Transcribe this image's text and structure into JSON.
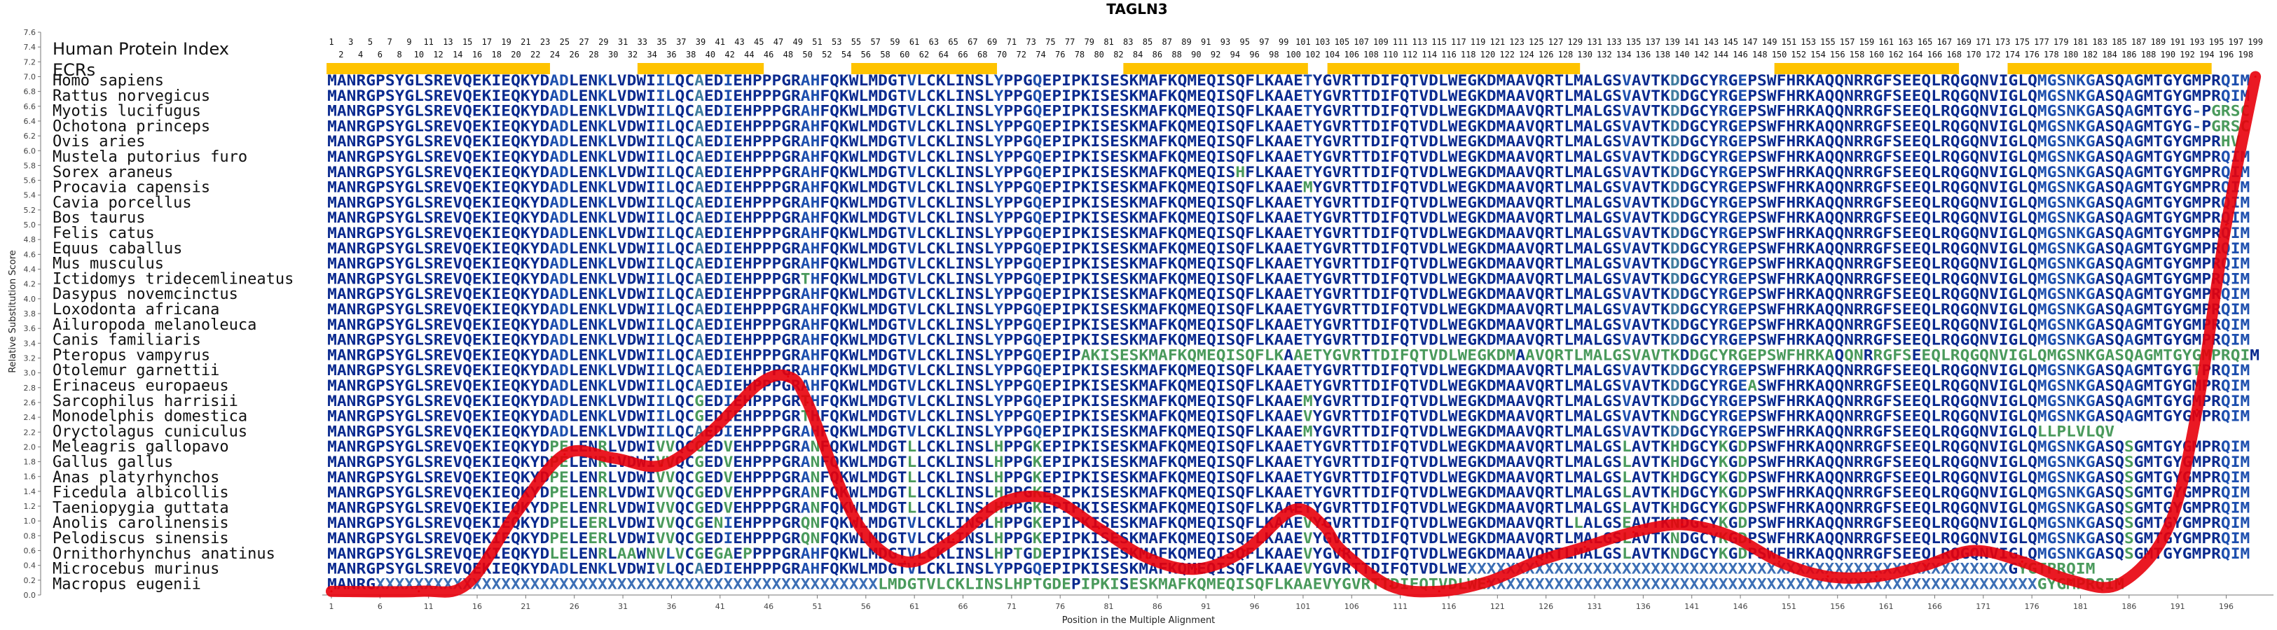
{
  "chart_data": {
    "type": "line",
    "title": "TAGLN3",
    "xlabel": "Position in the Multiple Alignment",
    "ylabel": "Relative Substitution Score",
    "xlim": [
      1,
      200
    ],
    "ylim": [
      0,
      7.6
    ],
    "yticks": [
      "0.0",
      "0.2",
      "0.4",
      "0.6",
      "0.8",
      "1.0",
      "1.2",
      "1.4",
      "1.6",
      "1.8",
      "2.0",
      "2.2",
      "2.4",
      "2.6",
      "2.8",
      "3.0",
      "3.2",
      "3.4",
      "3.6",
      "3.8",
      "4.0",
      "4.2",
      "4.4",
      "4.6",
      "4.8",
      "5.0",
      "5.2",
      "5.4",
      "5.6",
      "5.8",
      "6.0",
      "6.2",
      "6.4",
      "6.6",
      "6.8",
      "7.0",
      "7.2",
      "7.4",
      "7.6"
    ],
    "xticks": [
      "1",
      "6",
      "11",
      "16",
      "21",
      "26",
      "31",
      "36",
      "41",
      "46",
      "51",
      "56",
      "61",
      "66",
      "71",
      "76",
      "81",
      "86",
      "91",
      "96",
      "101",
      "106",
      "111",
      "116",
      "121",
      "126",
      "131",
      "136",
      "141",
      "146",
      "151",
      "156",
      "161",
      "166",
      "171",
      "176",
      "181",
      "186",
      "191",
      "196"
    ],
    "header_label": "Human Protein Index",
    "ecr_label": "ECRs",
    "human_index_odd": [
      "1",
      "3",
      "5",
      "7",
      "9",
      "11",
      "13",
      "15",
      "17",
      "19",
      "21",
      "23",
      "25",
      "27",
      "29",
      "31",
      "33",
      "35",
      "37",
      "39",
      "41",
      "43",
      "45",
      "47",
      "49",
      "51",
      "53",
      "55",
      "57",
      "59",
      "61",
      "63",
      "65",
      "67",
      "69",
      "71",
      "73",
      "75",
      "77",
      "79",
      "81",
      "83",
      "85",
      "87",
      "89",
      "91",
      "93",
      "95",
      "97",
      "99",
      "101",
      "103",
      "105",
      "107",
      "109",
      "111",
      "113",
      "115",
      "117",
      "119",
      "121",
      "123",
      "125",
      "127",
      "129",
      "131",
      "133",
      "135",
      "137",
      "139",
      "141",
      "143",
      "145",
      "147",
      "149",
      "151",
      "153",
      "155",
      "157",
      "159",
      "161",
      "163",
      "165",
      "167",
      "169",
      "171",
      "173",
      "175",
      "177",
      "179",
      "181",
      "183",
      "185",
      "187",
      "189",
      "191",
      "193",
      "195",
      "197",
      "199"
    ],
    "human_index_even": [
      "2",
      "4",
      "6",
      "8",
      "10",
      "12",
      "14",
      "16",
      "18",
      "20",
      "22",
      "24",
      "26",
      "28",
      "30",
      "32",
      "34",
      "36",
      "38",
      "40",
      "42",
      "44",
      "46",
      "48",
      "50",
      "52",
      "54",
      "56",
      "58",
      "60",
      "62",
      "64",
      "66",
      "68",
      "70",
      "72",
      "74",
      "76",
      "78",
      "80",
      "82",
      "84",
      "86",
      "88",
      "90",
      "92",
      "94",
      "96",
      "98",
      "100",
      "102",
      "104",
      "106",
      "108",
      "110",
      "112",
      "114",
      "116",
      "118",
      "120",
      "122",
      "124",
      "126",
      "128",
      "130",
      "132",
      "134",
      "136",
      "138",
      "140",
      "142",
      "144",
      "146",
      "148",
      "150",
      "152",
      "154",
      "156",
      "158",
      "160",
      "162",
      "164",
      "166",
      "168",
      "170",
      "172",
      "174",
      "176",
      "178",
      "180",
      "182",
      "184",
      "186",
      "188",
      "190",
      "192",
      "194",
      "196",
      "198"
    ],
    "ecrs": [
      [
        1,
        23
      ],
      [
        33,
        45
      ],
      [
        55,
        69
      ],
      [
        83,
        101
      ],
      [
        104,
        129
      ],
      [
        150,
        168
      ],
      [
        174,
        194
      ]
    ],
    "series": [
      {
        "color": "#e8000b",
        "x": [
          1,
          10,
          15,
          20,
          25,
          30,
          35,
          40,
          45,
          48,
          50,
          55,
          60,
          65,
          70,
          75,
          80,
          85,
          90,
          95,
          100,
          103,
          105,
          110,
          115,
          120,
          125,
          130,
          135,
          140,
          145,
          150,
          155,
          160,
          165,
          170,
          175,
          180,
          185,
          190,
          193,
          196,
          199
        ],
        "y": [
          0.05,
          0.05,
          0.15,
          1.1,
          1.9,
          1.85,
          1.75,
          2.2,
          2.85,
          2.95,
          2.6,
          1.0,
          0.45,
          0.75,
          1.25,
          1.3,
          0.9,
          0.5,
          0.35,
          0.6,
          1.15,
          0.95,
          0.6,
          0.12,
          0.05,
          0.18,
          0.45,
          0.65,
          0.85,
          0.95,
          0.8,
          0.45,
          0.25,
          0.25,
          0.4,
          0.6,
          0.45,
          0.2,
          0.15,
          0.9,
          2.5,
          5.0,
          7.0
        ]
      }
    ],
    "species": [
      "Homo sapiens",
      "Rattus norvegicus",
      "Myotis lucifugus",
      "Ochotona princeps",
      "Ovis aries",
      "Mustela putorius furo",
      "Sorex araneus",
      "Procavia capensis",
      "Cavia porcellus",
      "Bos taurus",
      "Felis catus",
      "Equus caballus",
      "Mus musculus",
      "Ictidomys tridecemlineatus",
      "Dasypus novemcinctus",
      "Loxodonta africana",
      "Ailuropoda melanoleuca",
      "Canis familiaris",
      "Pteropus vampyrus",
      "Otolemur garnettii",
      "Erinaceus europaeus",
      "Sarcophilus harrisii",
      "Monodelphis domestica",
      "Oryctolagus cuniculus",
      "Meleagris gallopavo",
      "Gallus gallus",
      "Anas platyrhynchos",
      "Ficedula albicollis",
      "Taeniopygia guttata",
      "Anolis carolinensis",
      "Pelodiscus sinensis",
      "Ornithorhynchus anatinus",
      "Microcebus murinus",
      "Macropus eugenii"
    ],
    "sequences": [
      "MANRGPSYGLSREVQEKIEQKYDADLENKLVDWIILQCAEDIEHPPPGRAHFQKWLMDGTVLCKLINSLYPPGQEPIPKISESKMAFKQMEQISQFLKAAETYGVRTTDIFQTVDLWEGKDMAAVQRTLMALGSVAVTKDDGCYRGEPSWFHRKAQQNRRGFSEEQLRQGQNVIGLQMGSNKGASQAGMTGYGMPRQIM",
      "MANRGPSYGLSREVQEKIEQKYDADLENKLVDWIILQCAEDIEHPPPGRAHFQKWLMDGTVLCKLINSLYPPGQEPIPKISESKMAFKQMEQISQFLKAAETYGVRTTDIFQTVDLWEGKDMAAVQRTLMALGSVAVTKDDGCYRGEPSWFHRKAQQNRRGFSEEQLRQGQNVIGLQMGSNKGASQAGMTGYGMPRQIM",
      "MANRGPSYGLSREVQEKIEQKYDADLENKLVDWIILQCAEDIEHPPPGRAHFQKWLMDGTVLCKLINSLYPPGQEPIPKISESKMAFKQMEQISQFLKAAETYGVRTTDIFQTVDLWEGKDMAAVQRTLMALGSVAVTKDDGCYRGEPSWFHRKAQQNRRGFSEEQLRQGQNVIGLQMGSNKGASQAGMTGYG-PGRSC",
      "MANRGPSYGLSREVQEKIEQKYDADLENKLVDWIILQCAEDIEHPPPGRAHFQKWLMDGTVLCKLINSLYPPGQEPIPKISESKMAFKQMEQISQFLKAAETYGVRTTDIFQTVDLWEGKDMAAVQRTLMALGSVAVTKDDGCYRGEPSWFHRKAQQNRRGFSEEQLRQGQNVIGLQMGSNKGASQAGMTGYG-PGRSC",
      "MANRGPSYGLSREVQEKIEQKYDADLENKLVDWIILQCAEDIEHPPPGRAHFQKWLMDGTVLCKLINSLYPPGQEPIPKISESKMAFKQMEQISQFLKAAETYGVRTTDIFQTVDLWEGKDMAAVQRTLMALGSVAVTKDDGCYRGEPSWFHRKAQQNRRGFSEEQLRQGQNVIGLQMGSNKGASQAGMTGYGMPRHV",
      "MANRGPSYGLSREVQEKIEQKYDADLENKLVDWIILQCAEDIEHPPPGRAHFQKWLMDGTVLCKLINSLYPPGQEPIPKISESKMAFKQMEQISQFLKAAETYGVRTTDIFQTVDLWEGKDMAAVQRTLMALGSVAVTKDDGCYRGEPSWFHRKAQQNRRGFSEEQLRQGQNVIGLQMGSNKGASQAGMTGYGMPRQIM",
      "MANRGPSYGLSREVQEKIEQKYDADLENKLVDWIILQCAEDIEHPPPGRAHFQKWLMDGTVLCKLINSLYPPGQEPIPKISESKMAFKQMEQISHFLKAAETYGVRTTDIFQTVDLWEGKDMAAVQRTLMALGSVAVTKDDGCYRGEPSWFHRKAQQNRRGFSEEQLRQGQNVIGLQMGSNKGASQAGMTGYGMPRQIM",
      "MANRGPSYGLSREVQEKIEQKYDADLENKLVDWIILQCAEDIEHPPPGRAHFQKWLMDGTVLCKLINSLYPPGQEPIPKISESKMAFKQMEQISQFLKAAEMYGVRTTDIFQTVDLWEGKDMAAVQRTLMALGSVAVTKDDGCYRGEPSWFHRKAQQNRRGFSEEQLRQGQNVIGLQMGSNKGASQAGMTGYGMPRQIM",
      "MANRGPSYGLSREVQEKIEQKYDADLENKLVDWIILQCAEDIEHPPPGRAHFQKWLMDGTVLCKLINSLYPPGQEPIPKISESKMAFKQMEQISQFLKAAETYGVRTTDIFQTVDLWEGKDMAAVQRTLMALGSVAVTKDDGCYRGEPSWFHRKAQQNRRGFSEEQLRQGQNVIGLQMGSNKGASQAGMTGYGMPRQIM",
      "MANRGPSYGLSREVQEKIEQKYDADLENKLVDWIILQCAEDIEHPPPGRAHFQKWLMDGTVLCKLINSLYPPGQEPIPKISESKMAFKQMEQISQFLKAAETYGVRTTDIFQTVDLWEGKDMAAVQRTLMALGSVAVTKDDGCYRGEPSWFHRKAQQNRRGFSEEQLRQGQNVIGLQMGSNKGASQAGMTGYGMPRQIM",
      "MANRGPSYGLSREVQEKIEQKYDADLENKLVDWIILQCAEDIEHPPPGRAHFQKWLMDGTVLCKLINSLYPPGQEPIPKISESKMAFKQMEQISQFLKAAETYGVRTTDIFQTVDLWEGKDMAAVQRTLMALGSVAVTKDDGCYRGEPSWFHRKAQQNRRGFSEEQLRQGQNVIGLQMGSNKGASQAGMTGYGMPRQIM",
      "MANRGPSYGLSREVQEKIEQKYDADLENKLVDWIILQCAEDIEHPPPGRAHFQKWLMDGTVLCKLINSLYPPGQEPIPKISESKMAFKQMEQISQFLKAAETYGVRTTDIFQTVDLWEGKDMAAVQRTLMALGSVAVTKDDGCYRGEPSWFHRKAQQNRRGFSEEQLRQGQNVIGLQMGSNKGASQAGMTGYGMPRQIM",
      "MANRGPSYGLSREVQEKIEQKYDADLENKLVDWIILQCAEDIEHPPPGRAHFQKWLMDGTVLCKLINSLYPPGQEPIPKISESKMAFKQMEQISQFLKAAETYGVRTTDIFQTVDLWEGKDMAAVQRTLMALGSVAVTKDDGCYRGEPSWFHRKAQQNRRGFSEEQLRQGQNVIGLQMGSNKGASQAGMTGYGMPRQIM",
      "MANRGPSYGLSREVQEKIEQKYDADLENKLVDWIILQCAEDIEHPPPGRTHFQKWLMDGTVLCKLINSLYPPGQEPIPKISESKMAFKQMEQISQFLKAAETYGVRTTDIFQTVDLWEGKDMAAVQRTLMALGSVAVTKDDGCYRGEPSWFHRKAQQNRRGFSEEQLRQGQNVIGLQMGSNKGASQAGMTGYGMPRQIM",
      "MANRGPSYGLSREVQEKIEQKYDADLENKLVDWIILQCAEDIEHPPPGRAHFQKWLMDGTVLCKLINSLYPPGQEPIPKISESKMAFKQMEQISQFLKAAETYGVRTTDIFQTVDLWEGKDMAAVQRTLMALGSVAVTKDDGCYRGEPSWFHRKAQQNRRGFSEEQLRQGQNVIGLQMGSNKGASQAGMTGYGMPRQIM",
      "MANRGPSYGLSREVQEKIEQKYDADLENKLVDWIILQCAEDIEHPPPGRAHFQKWLMDGTVLCKLINSLYPPGQEPIPKISESKMAFKQMEQISQFLKAAETYGVRTTDIFQTVDLWEGKDMAAVQRTLMALGSVAVTKDDGCYRGEPSWFHRKAQQNRRGFSEEQLRQGQNVIGLQMGSNKGASQAGMTGYGMPRQIM",
      "MANRGPSYGLSREVQEKIEQKYDADLENKLVDWIILQCAEDIEHPPPGRAHFQKWLMDGTVLCKLINSLYPPGQEPIPKISESKMAFKQMEQISQFLKAAETYGVRTTDIFQTVDLWEGKDMAAVQRTLMALGSVAVTKDDGCYRGEPSWFHRKAQQNRRGFSEEQLRQGQNVIGLQMGSNKGASQAGMTGYGMPRQIM",
      "MANRGPSYGLSREVQEKIEQKYDADLENKLVDWIILQCAEDIEHPPPGRAHFQKWLMDGTVLCKLINSLYPPGQEPIPKISESKMAFKQMEQISQFLKAAETYGVRTTDIFQTVDLWEGKDMAAVQRTLMALGSVAVTKDDGCYRGEPSWFHRKAQQNRRGFSEEQLRQGQNVIGLQMGSNKGASQAGMTGYGMPRQIM",
      "MANRGPSYGLSREVQEKIEQKYDADLENKLVDWIILQCAEDIEHPPPGRAHFQKWLMDGTVLCKLINSLYPPGQEPIPAKISESKMAFKQMEQISQFLKAAETYGVRTTDIFQTVDLWEGKDMAAVQRTLMALGSVAVTKDDGCYRGEPSWFHRKAQQNRRGFSEEQLRQGQNVIGLQMGSNKGASQAGMTGYGMPRQIM",
      "MANRGPSYGLSREVQEKIEQKYDADLENKLVDWIILQCAEDIEHPPPGRAHFQKWLMDGTVLCKLINSLYPPGQEPIPKISESKMAFKQMEQISQFLKAAETYGVRTTDIFQTVDLWEGKDMAAVQRTLMALGSVAVTKDDGCYRGEPSWFHRKAQQNRRGFSEEQLRQGQNVIGLQMGSNKGASQAGMTGYGTPRQIM",
      "MANRGPSYGLSREVQEKIEQKYDADLENKLVDWIILQCAEDIEHPPPGRAHFQKWLMDGTVLCKLINSLYPPGQEPIPKISESKMAFKQMEQISQFLKAAETYGVRTTDIFQTVDLWEGKDMAAVQRTLMALGSVAVTKDDGCYRGEASWFHRKAQQNRRGFSEEQLRQGQNVIGLQMGSNKGASQAGMTGYGMPRQIM",
      "MANRGPSYGLSREVQEKIEQKYDADLENKLVDWIILQCGEDIEHPPPGRTHFQKWLMDGTVLCKLINSLYPPGQEPIPKISESKMAFKQMEQISQFLKAAEMYGVRTTDIFQTVDLWEGKDMAAVQRTLMALGSVAVTKDDGCYRGEPSWFHRKAQQNRRGFSEEQLRQGQNVIGLQMGSNKGASQAGMTGYGMPRQIM",
      "MANRGPSYGLSREVQEKIEQKYDADLENKLVDWIILQCGEDIEHPPPGRTHFQKWLMDGTVLCKLINSLYPPGQEPIPKISESKMAFKQMEQISQFLKAAEVYGVRTTDIFQTVDLWEGKDMAAVQRTLMALGSVAVTKNDGCYRGEPSWFHRKAQQNRRGFSEEQLRQGQNVIGLQMGSNKGASQAGMTGYGMPRQIM",
      "MANRGPSYGLSREVQEKIEQKYDADLENKLVDWIILQCAEDIEHPPPGRAHFQKWLMDGTVLCKLINSLYPPGQEPIPKISESKMAFKQMEQISQFLKAAEMYGVRTTDIFQTVDLWEGKDMAAVQRTLMALGSVAVTKDDGCYRGEPSWFHRKAQQNRRGFSEEQLRQGQNVIGLQLLPLVLQV",
      "MANRGPSYGLSREVQEKIEQKYDPELENRLVDWIVVQCGEDVEHPPPGRANFQKWLMDGTLLCKLINSLHPPGKEPIPKISESKMAFKQMEQISQFLKAAETYGVRTTDIFQTVDLWEGKDMAAVQRTLMALGSLAVTKHDGCYKGDPSWFHRKAQQNRRGFSEEQLRQGQNVIGLQMGSNKGASQSGMTGYGMPRQIM",
      "MANRGPSYGLSREVQEKIEQKYDPELENRLVDWIVVQCGEDVEHPPPGRANFQKWLMDGTLLCKLINSLHPPGKEPIPKISESKMAFKQMEQISQFLKAAETYGVRTTDIFQTVDLWEGKDMAAVQRTLMALGSLAVTKHDGCYKGDPSWFHRKAQQNRRGFSEEQLRQGQNVIGLQMGSNKGASQSGMTGYGMPRQIM",
      "MANRGPSYGLSREVQEKIEQKYDPELENRLVDWIVVQCGEDVEHPPPGRANFQKWLMDGTLLCKLINSLHPPGKEPIPKISESKMAFKQMEQISQFLKAAETYGVRTTDIFQTVDLWEGKDMAAVQRTLMALGSLAVTKHDGCYKGDPSWFHRKAQQNRRGFSEEQLRQGQNVIGLQMGSNKGASQSGMTGYGMPRQIM",
      "MANRGPSYGLSREVQEKIEQKYDPELENRLVDWIVVQCGEDVEHPPPGRANFQKWLMDGTLLCKLINSLHPPGKEPIPKISESKMAFKQMEQISQFLKAAETYGVRTTDIFQTVDLWEGKDMAAVQRTLMALGSLAVTKHDGCYKGDPSWFHRKAQQNRRGFSEEQLRQGQNVIGLQMGSNKGASQSGMTGYGMPRQIM",
      "MANRGPSYGLSREVQEKIEQKYDPELENRLVDWIVVQCGEDVEHPPPGRANFQKWLMDGTLLCKLINSLHPPGKEPIPKISESKMAFKQMEQISQFLKAAETYGVRTTDIFQTVDLWEGKDMAAVQRTLMALGSLAVTKHDGCYKGDPSWFHRKAQQNRRGFSEEQLRQGQNVIGLQMGSNKGASQSGMTGYGMPRQIM",
      "MANRGPSYGLSREVQEKIEQKYDPELEERLVDWIVVQCGENIEHPPPGRQNFQKWLMDGTVLCKLINSLHPPGKEPIPKISESKMAFKQMEQISQFLKAAEVYGVRTTDIFQTVDLWEGKDMAAVQRTLLALGSEAVTKNDGCYKGDPSWFHRKAQQNRRGFSEEQLRQGQNVIGLQMGSNKGASQSGMTGYGMPRQIM",
      "MANRGPSYGLSREVQEKIEQKYDPELEERLVDWIVVQCGEDIEHPPPGRQNFQKWLMDGTVLCKLINSLHPPGKEPIPKISESKMAFKQMEQISQFLKAAEVYGVRTTDIFQTVDLWEGKDMAAVQRTLMALGSLAVTKNDGCYKGDPSWFHRKAQQNRRGFSEEQLRQGQNVIGLQMGSNKGASQSGMTGYGMPRQIM",
      "MANRGPSYGLSREVQEKIEQKYDLELENRLAAWNVLVCGEGAEPPPPGRAHFQKWLMDGTVLCKLINSLHPTGDEPIPKISESKMAFKQMEQISQFLKAAEVYGVRTTDIFQTVDLWEGKDMAAVQRTLMALGSLAVTKNDGCYKGDPSWFHRKAQQNRRGFSEEQLRQGQNVIGLQMGSNKGASQSGMTGYGMPRQIM",
      "MANRGPSYGLSREVQEKIEQKYDADLENKLVDWIVLQCAEDIEHPPPGRAHFQKWLMDGTVLCKLINSLYPPGQEPIPKISESKMAFKQMEQISQFLKAAEVYGVRTTDIFQTVDLWEXXXXXXXXXXXXXXXXXXXXXXXXXXXXXXXXXXXXXXXXXXXXXXXXXXXXXXXXGYGTPRQIM",
      "MANRGXXXXXXXXXXXXXXXXXXXXXXXXXXXXXXXXXXXXXXXXXXXXXXXXXXXXLMDGTVLCKLINSLHPTGDEPIPKISESKMAFKQMEQISQFLKAAEVYGVRTTDIFQTVDLWEXXXXXXXXXXXXXXXXXXXXXXXXXXXXXXXXXXXXXXXXXXXXXXXXXXXXXXXXXGYGMPRQIM"
    ]
  }
}
